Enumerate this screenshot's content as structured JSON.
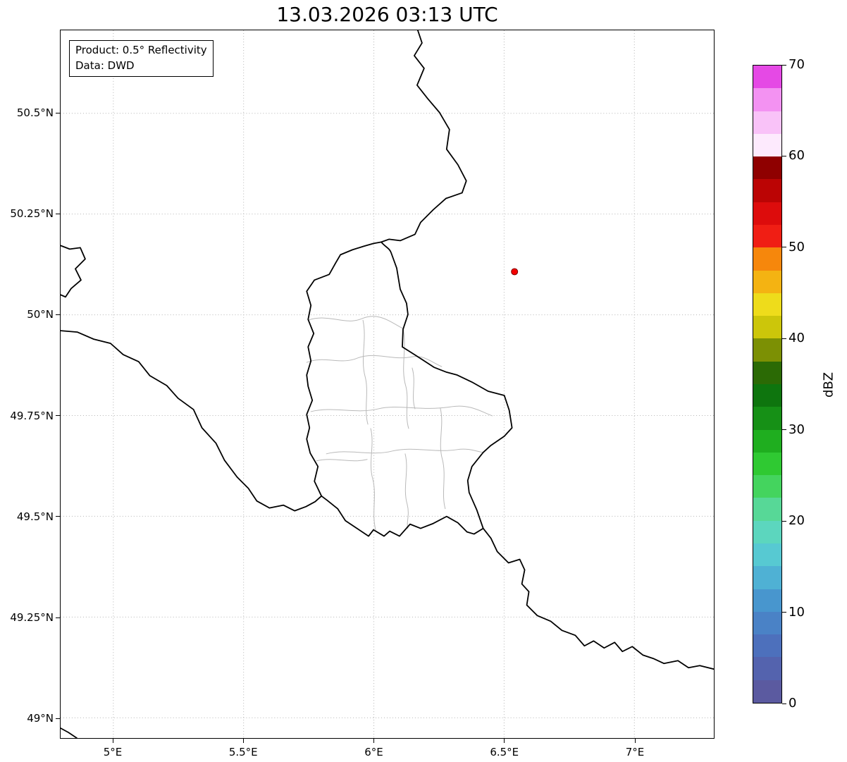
{
  "title": "13.03.2026 03:13 UTC",
  "info_box": {
    "line1": "Product: 0.5° Reflectivity",
    "line2": "Data: DWD"
  },
  "axes": {
    "lat_ticks": [
      {
        "label": "50.5°N",
        "value": 50.5
      },
      {
        "label": "50.25°N",
        "value": 50.25
      },
      {
        "label": "50°N",
        "value": 50.0
      },
      {
        "label": "49.75°N",
        "value": 49.75
      },
      {
        "label": "49.5°N",
        "value": 49.5
      },
      {
        "label": "49.25°N",
        "value": 49.25
      },
      {
        "label": "49°N",
        "value": 49.0
      }
    ],
    "lon_ticks": [
      {
        "label": "5°E",
        "value": 5.0
      },
      {
        "label": "5.5°E",
        "value": 5.5
      },
      {
        "label": "6°E",
        "value": 6.0
      },
      {
        "label": "6.5°E",
        "value": 6.5
      },
      {
        "label": "7°E",
        "value": 7.0
      }
    ]
  },
  "radar_marker": {
    "lon": 6.54,
    "lat": 50.107,
    "color": "#f40000",
    "edge_color": "#7a0000"
  },
  "colorbar": {
    "label": "dBZ",
    "min": 0,
    "max": 70,
    "ticks": [
      0,
      10,
      20,
      30,
      40,
      50,
      60,
      70
    ],
    "colors_bottom_to_top": [
      "#5b5aa0",
      "#5463ae",
      "#4d70bc",
      "#4a82c6",
      "#4896ce",
      "#4fb1d4",
      "#57c9d2",
      "#5cd6be",
      "#57d897",
      "#44d45e",
      "#2fc932",
      "#1fae1f",
      "#169016",
      "#0e750e",
      "#2b6a05",
      "#7c9004",
      "#ccc60a",
      "#eedc1b",
      "#f4b312",
      "#f6870c",
      "#f01e14",
      "#dd0c0c",
      "#bb0404",
      "#8f0000",
      "#fdeafd",
      "#f9c2f8",
      "#f392f2",
      "#e549e5"
    ]
  }
}
